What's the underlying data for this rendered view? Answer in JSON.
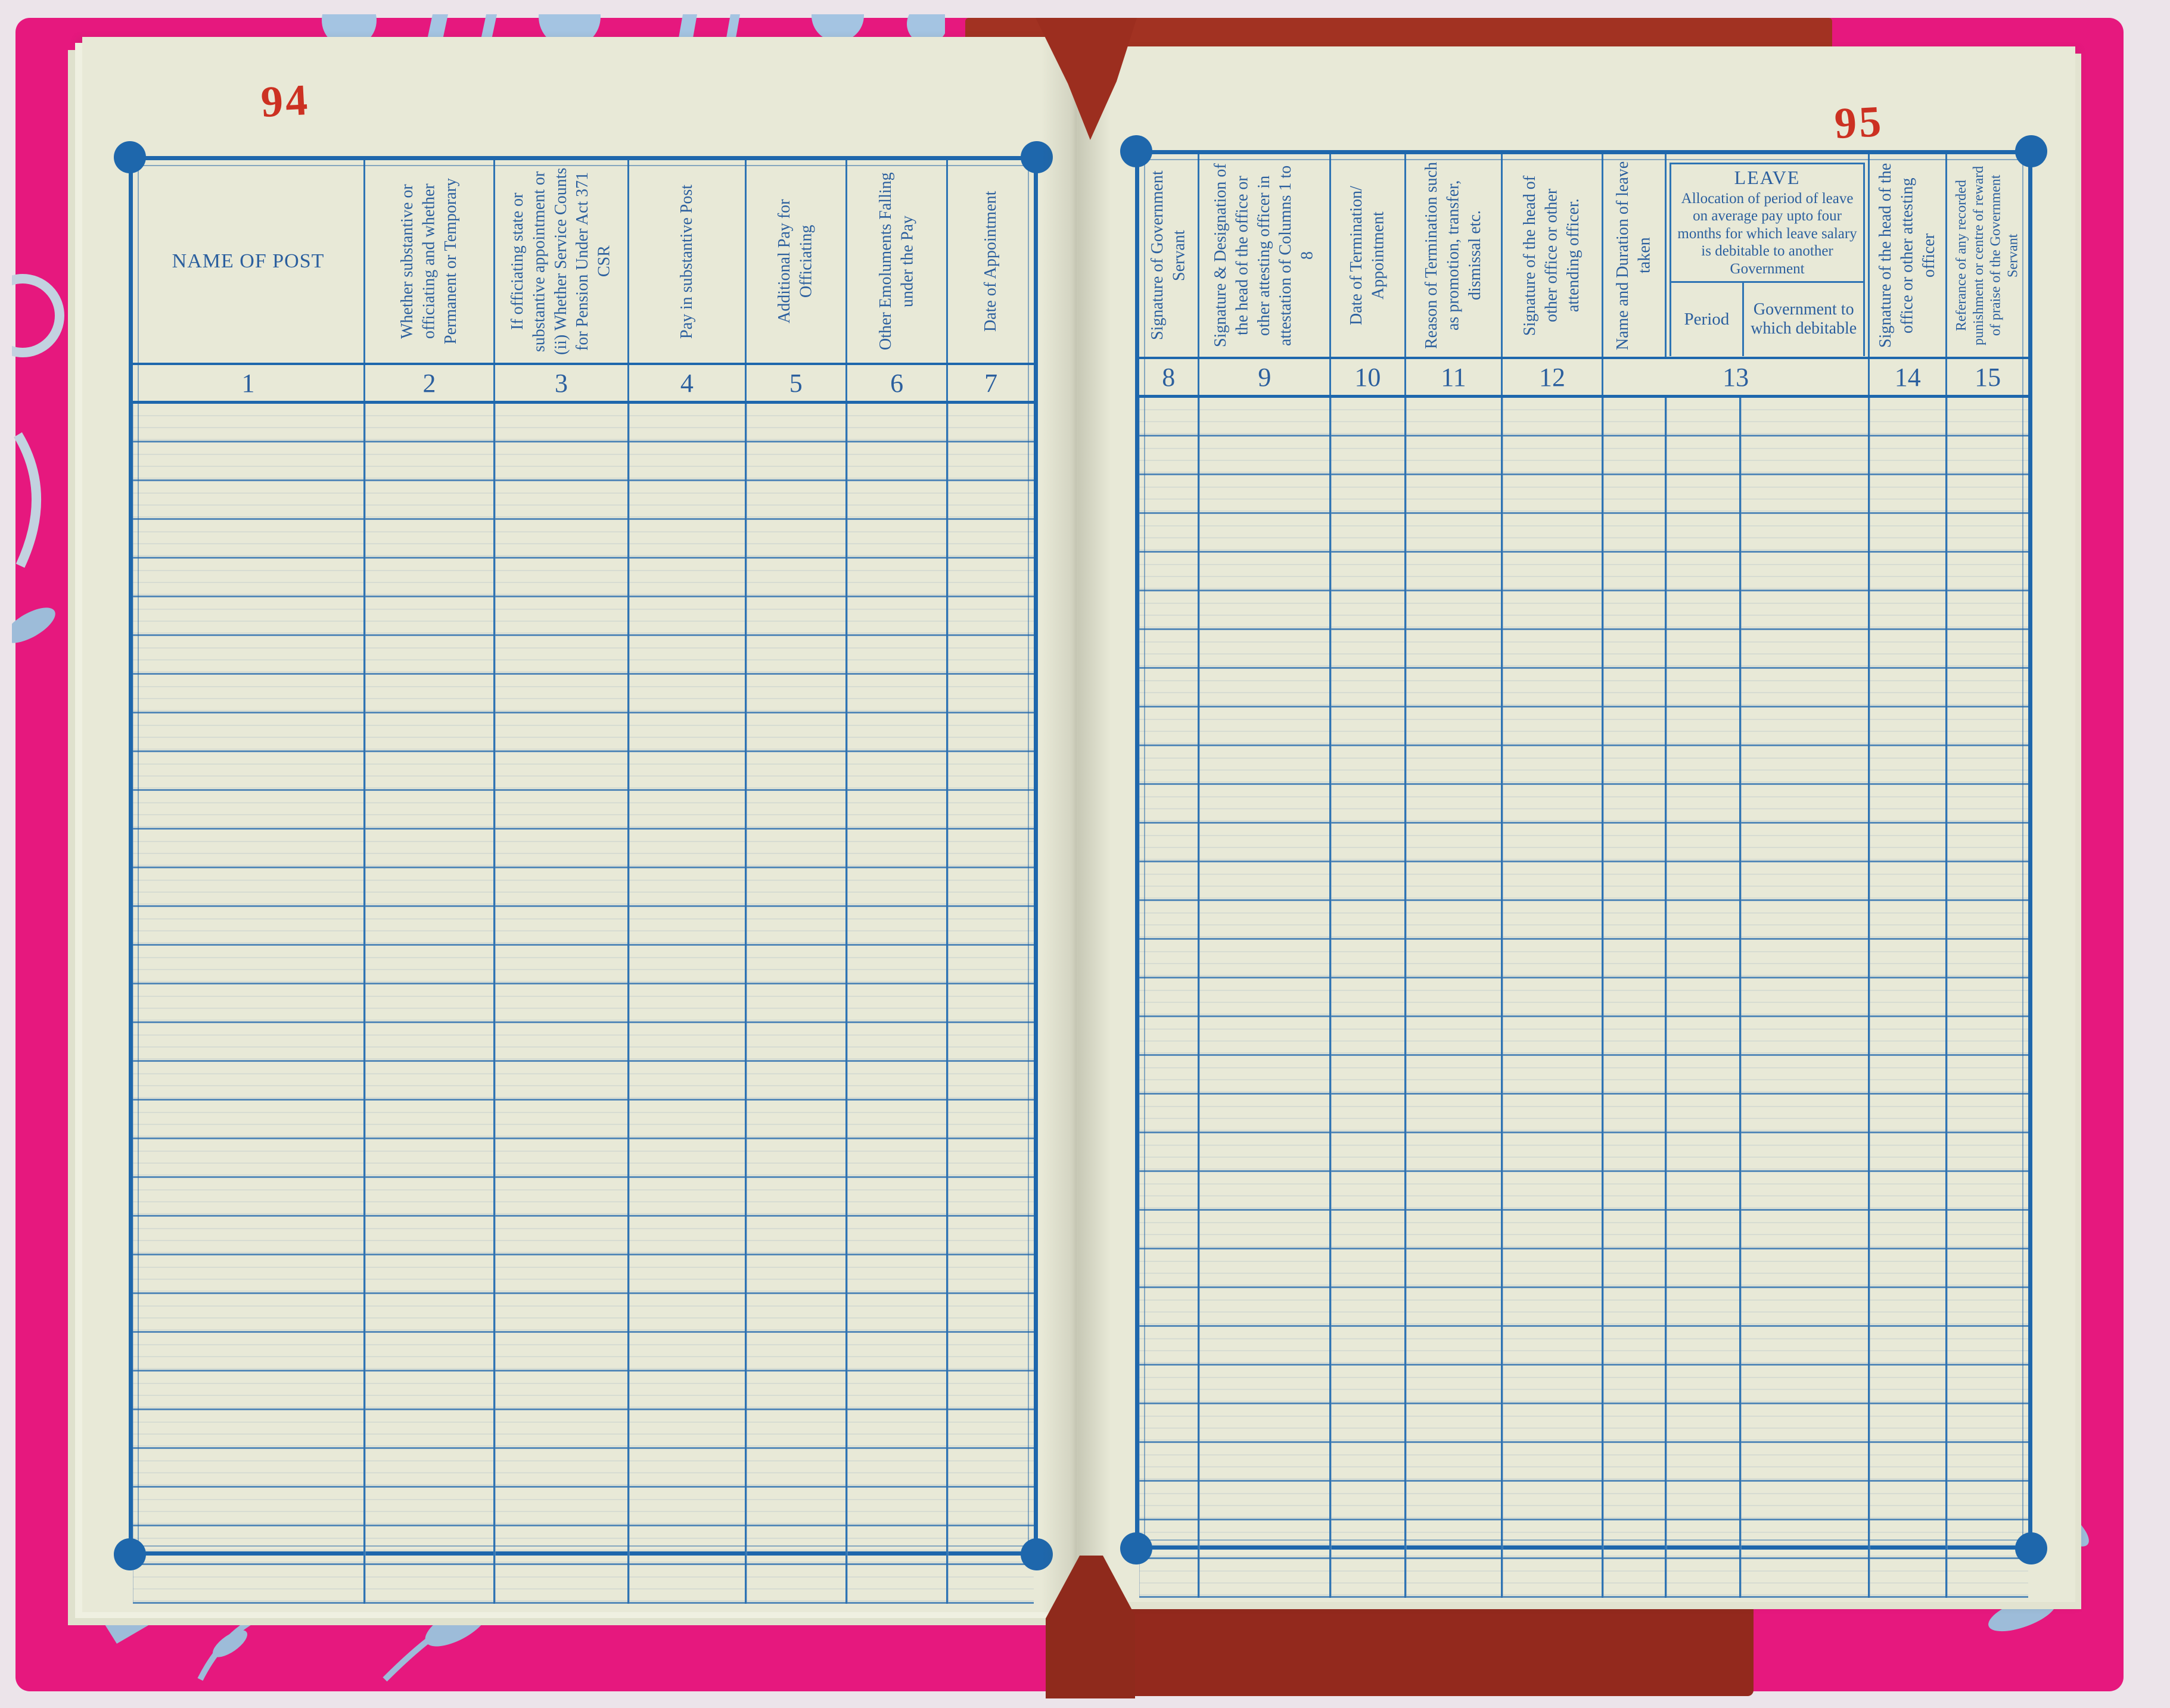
{
  "register": {
    "left": {
      "page_number": "94",
      "columns": [
        {
          "num": "1",
          "label": "NAME OF POST"
        },
        {
          "num": "2",
          "label": "Whether substantive or officiating and whether Permanent or Temporary"
        },
        {
          "num": "3",
          "label": "If officiating state or substantive appointment or (ii) Whether Service Counts for Pension Under Act 371 CSR"
        },
        {
          "num": "4",
          "label": "Pay in substantive Post"
        },
        {
          "num": "5",
          "label": "Additional Pay for Officiating"
        },
        {
          "num": "6",
          "label": "Other Emoluments Falling under the Pay"
        },
        {
          "num": "7",
          "label": "Date of Appointment"
        }
      ],
      "empty_rows": 31
    },
    "right": {
      "page_number": "95",
      "columns": [
        {
          "num": "8",
          "label": "Signature of Government Servant"
        },
        {
          "num": "9",
          "label": "Signature & Designation of the head of the office or other attesting officer in attestation of Columns 1 to 8"
        },
        {
          "num": "10",
          "label": "Date of Termination/ Appointment"
        },
        {
          "num": "11",
          "label": "Reason of Termination such as promotion, transfer, dismissal etc."
        },
        {
          "num": "12",
          "label": "Signature of the head of other office or other attending officer."
        }
      ],
      "leave": {
        "name_duration_label": "Name and Duration of leave taken",
        "group_number": "13",
        "title": "LEAVE",
        "description": "Allocation of period of leave on average pay upto four months for which leave salary is debitable to another Government",
        "sub_columns": [
          {
            "label": "Period"
          },
          {
            "label": "Government to which debitable"
          }
        ]
      },
      "columns_after": [
        {
          "num": "14",
          "label": "Signature of the head of the office or other attesting officer"
        },
        {
          "num": "15",
          "label": "Referance of any recorded punishment or centre of reward of praise of the Government Servant"
        }
      ],
      "empty_rows": 31
    },
    "colors": {
      "cover_pink": "#e6187e",
      "binding_cloth_red": "#9c2e1f",
      "paper_cream": "#e8e9d7",
      "rule_blue": "#2e74b4",
      "frame_blue": "#1e67ac",
      "header_text_blue": "#2b5f9e",
      "page_number_red": "#cc3122",
      "floral_pattern_blue": "#a4c4e2"
    }
  }
}
